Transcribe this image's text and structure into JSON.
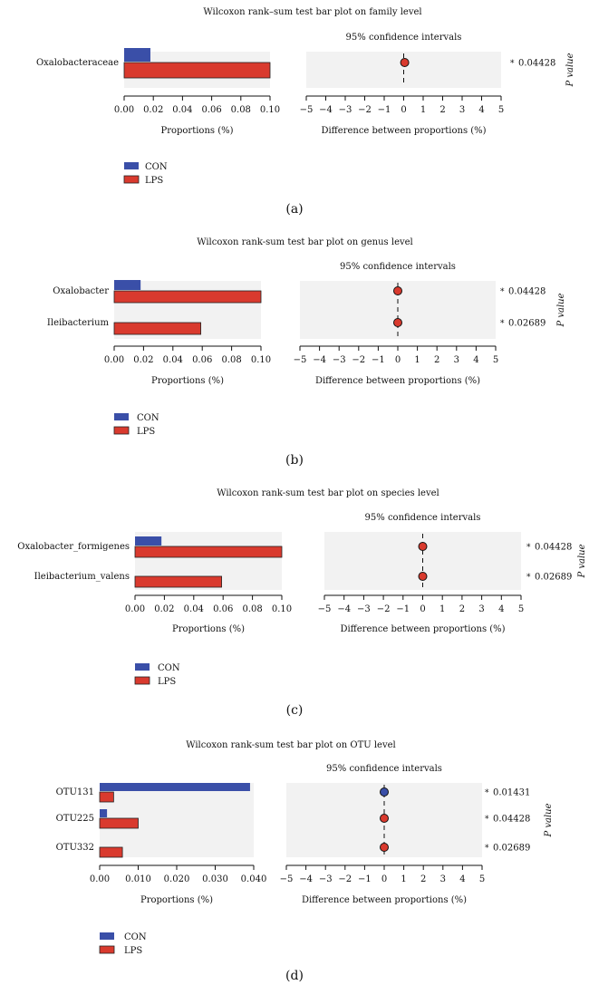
{
  "chart_data": [
    {
      "type": "bar",
      "panel_label": "(a)",
      "title": "Wilcoxon rank–sum test bar plot on family level",
      "ci_title": "95% confidence intervals",
      "xlabel": "Proportions (%)",
      "ci_xlabel": "Difference between proportions (%)",
      "pvalue_axis_label": "P value",
      "categories": [
        "Oxalobacteraceae"
      ],
      "xlim": [
        0,
        0.1
      ],
      "xticks": [
        "0.00",
        "0.02",
        "0.04",
        "0.06",
        "0.08",
        "0.10"
      ],
      "series": [
        {
          "name": "CON",
          "values": [
            0.018
          ]
        },
        {
          "name": "LPS",
          "values": [
            0.1
          ]
        }
      ],
      "difference": [
        0.05
      ],
      "difference_colors": [
        "red"
      ],
      "ci_xlim": [
        -5,
        5
      ],
      "ci_xticks": [
        "−5",
        "−4",
        "−3",
        "−2",
        "−1",
        "0",
        "1",
        "2",
        "3",
        "4",
        "5"
      ],
      "p_values": [
        "0.04428"
      ],
      "significance": [
        "*"
      ],
      "legend": [
        "CON",
        "LPS"
      ]
    },
    {
      "type": "bar",
      "panel_label": "(b)",
      "title": "Wilcoxon rank-sum test bar plot on genus level",
      "ci_title": "95% confidence intervals",
      "xlabel": "Proportions (%)",
      "ci_xlabel": "Difference between proportions (%)",
      "pvalue_axis_label": "P value",
      "categories": [
        "Oxalobacter",
        "Ileibacterium"
      ],
      "xlim": [
        0,
        0.1
      ],
      "xticks": [
        "0.00",
        "0.02",
        "0.04",
        "0.06",
        "0.08",
        "0.10"
      ],
      "series": [
        {
          "name": "CON",
          "values": [
            0.018,
            0.0
          ]
        },
        {
          "name": "LPS",
          "values": [
            0.1,
            0.059
          ]
        }
      ],
      "difference": [
        0.0,
        0.0
      ],
      "difference_colors": [
        "red",
        "red"
      ],
      "ci_xlim": [
        -5,
        5
      ],
      "ci_xticks": [
        "−5",
        "−4",
        "−3",
        "−2",
        "−1",
        "0",
        "1",
        "2",
        "3",
        "4",
        "5"
      ],
      "p_values": [
        "0.04428",
        "0.02689"
      ],
      "significance": [
        "*",
        "*"
      ],
      "legend": [
        "CON",
        "LPS"
      ]
    },
    {
      "type": "bar",
      "panel_label": "(c)",
      "title": "Wilcoxon rank-sum test bar plot on species level",
      "ci_title": "95% confidence intervals",
      "xlabel": "Proportions (%)",
      "ci_xlabel": "Difference between proportions (%)",
      "pvalue_axis_label": "P value",
      "categories": [
        "Oxalobacter_formigenes",
        "Ileibacterium_valens"
      ],
      "xlim": [
        0,
        0.1
      ],
      "xticks": [
        "0.00",
        "0.02",
        "0.04",
        "0.06",
        "0.08",
        "0.10"
      ],
      "series": [
        {
          "name": "CON",
          "values": [
            0.018,
            0.0
          ]
        },
        {
          "name": "LPS",
          "values": [
            0.1,
            0.059
          ]
        }
      ],
      "difference": [
        0.0,
        0.0
      ],
      "difference_colors": [
        "red",
        "red"
      ],
      "ci_xlim": [
        -5,
        5
      ],
      "ci_xticks": [
        "−5",
        "−4",
        "−3",
        "−2",
        "−1",
        "0",
        "1",
        "2",
        "3",
        "4",
        "5"
      ],
      "p_values": [
        "0.04428",
        "0.02689"
      ],
      "significance": [
        "*",
        "*"
      ],
      "legend": [
        "CON",
        "LPS"
      ]
    },
    {
      "type": "bar",
      "panel_label": "(d)",
      "title": "Wilcoxon rank-sum test bar plot on OTU level",
      "ci_title": "95% confidence intervals",
      "xlabel": "Proportions (%)",
      "ci_xlabel": "Difference between proportions (%)",
      "pvalue_axis_label": "P value",
      "categories": [
        "OTU131",
        "OTU225",
        "OTU332"
      ],
      "xlim": [
        0,
        0.042
      ],
      "xticks": [
        "0.00",
        "0.010",
        "0.020",
        "0.030",
        "0.040"
      ],
      "series": [
        {
          "name": "CON",
          "values": [
            0.041,
            0.002,
            0.0
          ]
        },
        {
          "name": "LPS",
          "values": [
            0.0038,
            0.0105,
            0.0062
          ]
        }
      ],
      "difference": [
        0.0,
        0.0,
        0.0
      ],
      "difference_colors": [
        "blue",
        "red",
        "red"
      ],
      "ci_xlim": [
        -5,
        5
      ],
      "ci_xticks": [
        "−5",
        "−4",
        "−3",
        "−2",
        "−1",
        "0",
        "1",
        "2",
        "3",
        "4",
        "5"
      ],
      "p_values": [
        "0.01431",
        "0.04428",
        "0.02689"
      ],
      "significance": [
        "*",
        "*",
        "*"
      ],
      "legend": [
        "CON",
        "LPS"
      ]
    }
  ],
  "colors": {
    "CON": "#3a4fa8",
    "LPS": "#d93a2e",
    "panel_bg": "#f2f2f2"
  }
}
